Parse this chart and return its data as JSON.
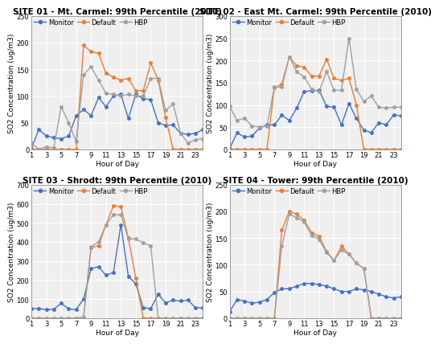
{
  "hours": [
    1,
    2,
    3,
    4,
    5,
    6,
    7,
    8,
    9,
    10,
    11,
    12,
    13,
    14,
    15,
    16,
    17,
    18,
    19,
    20,
    21,
    22,
    23,
    24
  ],
  "sites": [
    {
      "title": "SITE 01 - Mt. Carmel: 99th Percentile (2010)",
      "ylim": [
        0,
        250
      ],
      "yticks": [
        0,
        50,
        100,
        150,
        200,
        250
      ],
      "monitor": [
        2,
        37,
        25,
        22,
        20,
        25,
        63,
        75,
        63,
        97,
        80,
        100,
        103,
        58,
        103,
        95,
        93,
        50,
        45,
        46,
        30,
        28,
        30,
        37
      ],
      "default": [
        0,
        0,
        0,
        0,
        0,
        0,
        0,
        195,
        183,
        180,
        143,
        135,
        130,
        133,
        110,
        110,
        162,
        130,
        60,
        0,
        0,
        0,
        0,
        0
      ],
      "hbp": [
        12,
        0,
        5,
        3,
        80,
        50,
        15,
        140,
        155,
        130,
        105,
        103,
        100,
        103,
        100,
        100,
        133,
        133,
        73,
        85,
        30,
        12,
        18,
        20
      ]
    },
    {
      "title": "SITE 02 - East Mt. Carmel: 99th Percentile (2010)",
      "ylim": [
        0,
        300
      ],
      "yticks": [
        0,
        50,
        100,
        150,
        200,
        250,
        300
      ],
      "monitor": [
        2,
        37,
        28,
        30,
        48,
        55,
        55,
        77,
        65,
        93,
        130,
        132,
        133,
        97,
        95,
        55,
        103,
        70,
        43,
        38,
        60,
        55,
        78,
        75
      ],
      "default": [
        0,
        0,
        0,
        0,
        0,
        0,
        138,
        147,
        208,
        188,
        185,
        165,
        165,
        203,
        160,
        155,
        160,
        100,
        0,
        0,
        0,
        0,
        0,
        0
      ],
      "hbp": [
        97,
        65,
        70,
        53,
        50,
        52,
        140,
        140,
        208,
        175,
        163,
        135,
        130,
        175,
        133,
        133,
        250,
        135,
        108,
        120,
        95,
        93,
        95,
        95
      ]
    },
    {
      "title": "SITE 03 - Shrodt: 99th Percentile (2010)",
      "ylim": [
        0,
        700
      ],
      "yticks": [
        0,
        100,
        200,
        300,
        400,
        500,
        600,
        700
      ],
      "monitor": [
        50,
        50,
        45,
        47,
        78,
        48,
        45,
        100,
        260,
        270,
        225,
        240,
        490,
        220,
        180,
        55,
        50,
        125,
        80,
        95,
        90,
        95,
        55,
        55
      ],
      "default": [
        0,
        0,
        0,
        0,
        0,
        0,
        0,
        5,
        370,
        380,
        490,
        590,
        585,
        420,
        210,
        0,
        0,
        0,
        0,
        0,
        0,
        0,
        0,
        0
      ],
      "hbp": [
        0,
        0,
        0,
        0,
        0,
        0,
        0,
        5,
        375,
        400,
        490,
        543,
        543,
        418,
        415,
        395,
        380,
        0,
        0,
        0,
        0,
        0,
        0,
        0
      ]
    },
    {
      "title": "SITE 04 - Tower: 99th Percentile (2010)",
      "ylim": [
        0,
        250
      ],
      "yticks": [
        0,
        50,
        100,
        150,
        200,
        250
      ],
      "monitor": [
        12,
        35,
        32,
        28,
        30,
        35,
        48,
        55,
        55,
        60,
        65,
        65,
        63,
        60,
        55,
        50,
        50,
        55,
        53,
        50,
        45,
        40,
        38,
        40
      ],
      "default": [
        0,
        0,
        0,
        0,
        0,
        0,
        0,
        165,
        200,
        195,
        183,
        160,
        153,
        125,
        108,
        135,
        120,
        103,
        93,
        0,
        0,
        0,
        0,
        0
      ],
      "hbp": [
        0,
        0,
        0,
        0,
        0,
        0,
        0,
        135,
        195,
        188,
        180,
        155,
        148,
        123,
        108,
        128,
        120,
        103,
        93,
        0,
        0,
        0,
        0,
        0
      ]
    }
  ],
  "monitor_color": "#4472C4",
  "default_color": "#ED7D31",
  "hbp_color": "#A0A0A0",
  "bg_color": "#ffffff",
  "plot_bg_color": "#efefef",
  "grid_color": "#ffffff",
  "xlabel": "Hour of Day",
  "ylabel": "SO2 Concentration (ug/m3)",
  "title_fontsize": 7.5,
  "axis_fontsize": 6.5,
  "tick_fontsize": 6,
  "legend_fontsize": 6
}
